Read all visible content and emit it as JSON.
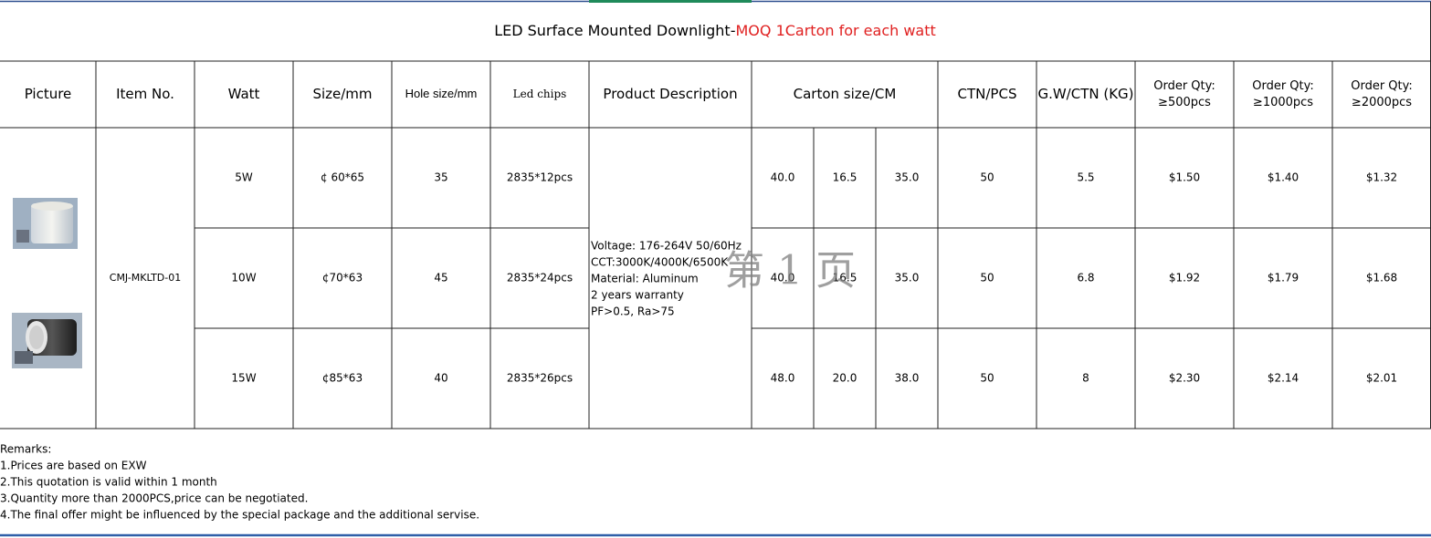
{
  "title": {
    "text": "LED Surface Mounted Downlight-",
    "highlight": "MOQ 1Carton for each watt"
  },
  "headers": [
    [
      "Picture"
    ],
    [
      "Item No."
    ],
    [
      "Watt"
    ],
    [
      "Size/mm"
    ],
    [
      "Hole size/mm"
    ],
    [
      "Led chips"
    ],
    [
      "Product Description"
    ],
    [
      "Carton size/CM"
    ],
    [
      "CTN/PCS"
    ],
    [
      "G.W/CTN (KG)"
    ],
    [
      "Order Qty:",
      "≥500pcs"
    ],
    [
      "Order Qty:",
      "≥1000pcs"
    ],
    [
      "Order Qty:",
      "≥2000pcs"
    ]
  ],
  "item_no": "CMJ-MKLTD-01",
  "description": [
    "Voltage: 176-264V  50/60Hz",
    "CCT:3000K/4000K/6500K",
    "Material: Aluminum",
    "2 years warranty",
    "PF>0.5, Ra>75"
  ],
  "rows": [
    {
      "watt": "5W",
      "size": "¢ 60*65",
      "hole": "35",
      "chips": "2835*12pcs",
      "carton": [
        "40.0",
        "16.5",
        "35.0"
      ],
      "ctn": "50",
      "gw": "5.5",
      "prices": [
        "$1.50",
        "$1.40",
        "$1.32"
      ]
    },
    {
      "watt": "10W",
      "size": "¢70*63",
      "hole": "45",
      "chips": "2835*24pcs",
      "carton": [
        "40.0",
        "16.5",
        "35.0"
      ],
      "ctn": "50",
      "gw": "6.8",
      "prices": [
        "$1.92",
        "$1.79",
        "$1.68"
      ]
    },
    {
      "watt": "15W",
      "size": "¢85*63",
      "hole": "40",
      "chips": "2835*26pcs",
      "carton": [
        "48.0",
        "20.0",
        "38.0"
      ],
      "ctn": "50",
      "gw": "8",
      "prices": [
        "$2.30",
        "$2.14",
        "$2.01"
      ]
    }
  ],
  "watermark": "第 1 页",
  "remarks": [
    "Remarks:",
    "1.Prices are based on EXW",
    "2.This quotation is valid within 1 month",
    "3.Quantity more than 2000PCS,price can be negotiated.",
    "4.The final offer might be influenced by the special package and the additional servise."
  ]
}
